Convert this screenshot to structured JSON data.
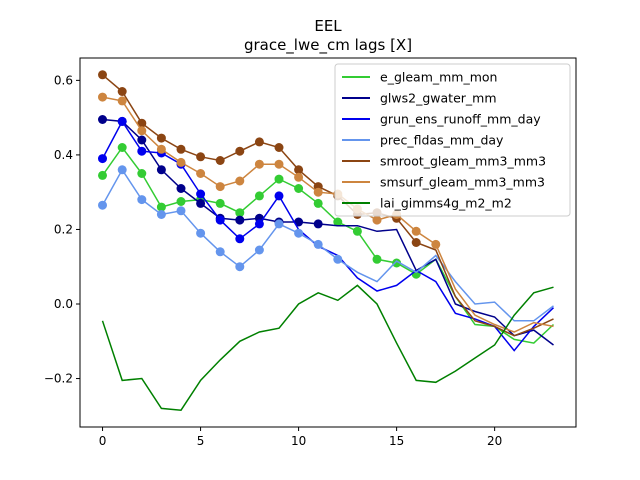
{
  "chart_data": {
    "type": "line",
    "title": "EEL",
    "subtitle": "grace_lwe_cm lags [X]",
    "xlabel": "",
    "ylabel": "",
    "xlim": [
      -1.15,
      24.15
    ],
    "ylim": [
      -0.33,
      0.66
    ],
    "xticks": [
      0,
      5,
      10,
      15,
      20
    ],
    "yticks": [
      -0.2,
      0.0,
      0.2,
      0.4,
      0.6
    ],
    "ytick_labels": [
      "−0.2",
      "0.0",
      "0.2",
      "0.4",
      "0.6"
    ],
    "grid": false,
    "legend_position": "top-right",
    "x": [
      0,
      1,
      2,
      3,
      4,
      5,
      6,
      7,
      8,
      9,
      10,
      11,
      12,
      13,
      14,
      15,
      16,
      17,
      18,
      19,
      20,
      21,
      22,
      23
    ],
    "series": [
      {
        "name": "e_gleam_mm_mon",
        "color": "#33cc33",
        "marker_count": 17,
        "values": [
          0.345,
          0.42,
          0.35,
          0.26,
          0.275,
          0.28,
          0.27,
          0.245,
          0.29,
          0.335,
          0.31,
          0.27,
          0.22,
          0.195,
          0.12,
          0.11,
          0.08,
          0.12,
          0.02,
          -0.055,
          -0.06,
          -0.095,
          -0.105,
          -0.055
        ]
      },
      {
        "name": "glws2_gwater_mm",
        "color": "#00008b",
        "marker_count": 12,
        "values": [
          0.495,
          0.49,
          0.44,
          0.36,
          0.31,
          0.27,
          0.23,
          0.225,
          0.23,
          0.22,
          0.22,
          0.215,
          0.21,
          0.21,
          0.195,
          0.2,
          0.09,
          0.12,
          0.0,
          -0.02,
          -0.035,
          -0.085,
          -0.07,
          -0.11
        ]
      },
      {
        "name": "grun_ens_runoff_mm_day",
        "color": "#0000ee",
        "marker_count": 10,
        "values": [
          0.39,
          0.49,
          0.41,
          0.405,
          0.375,
          0.295,
          0.225,
          0.175,
          0.215,
          0.29,
          0.2,
          0.155,
          0.13,
          0.07,
          0.035,
          0.05,
          0.09,
          0.06,
          -0.025,
          -0.04,
          -0.06,
          -0.125,
          -0.06,
          -0.01
        ]
      },
      {
        "name": "prec_fldas_mm_day",
        "color": "#6495ed",
        "marker_count": 13,
        "values": [
          0.265,
          0.36,
          0.28,
          0.24,
          0.25,
          0.19,
          0.14,
          0.1,
          0.145,
          0.215,
          0.19,
          0.16,
          0.12,
          0.085,
          0.06,
          0.115,
          0.085,
          0.13,
          0.06,
          0.0,
          0.005,
          -0.045,
          -0.045,
          -0.005
        ]
      },
      {
        "name": "smroot_gleam_mm3_mm3",
        "color": "#8b4513",
        "marker_count": 17,
        "values": [
          0.615,
          0.57,
          0.485,
          0.445,
          0.415,
          0.395,
          0.385,
          0.41,
          0.435,
          0.42,
          0.36,
          0.315,
          0.29,
          0.24,
          0.245,
          0.23,
          0.165,
          0.145,
          0.02,
          -0.045,
          -0.06,
          -0.085,
          -0.065,
          -0.04
        ]
      },
      {
        "name": "smsurf_gleam_mm3_mm3",
        "color": "#cd853f",
        "marker_count": 18,
        "values": [
          0.555,
          0.545,
          0.465,
          0.415,
          0.38,
          0.35,
          0.315,
          0.33,
          0.375,
          0.375,
          0.34,
          0.3,
          0.295,
          0.255,
          0.225,
          0.24,
          0.195,
          0.16,
          0.04,
          -0.03,
          -0.055,
          -0.075,
          -0.05,
          -0.06
        ]
      },
      {
        "name": "lai_gimms4g_m2_m2",
        "color": "#008000",
        "marker_count": 0,
        "values": [
          -0.045,
          -0.205,
          -0.2,
          -0.28,
          -0.285,
          -0.205,
          -0.15,
          -0.1,
          -0.075,
          -0.065,
          0.0,
          0.03,
          0.01,
          0.05,
          0.0,
          -0.105,
          -0.205,
          -0.21,
          -0.18,
          -0.145,
          -0.11,
          -0.03,
          0.03,
          0.045
        ]
      }
    ]
  }
}
